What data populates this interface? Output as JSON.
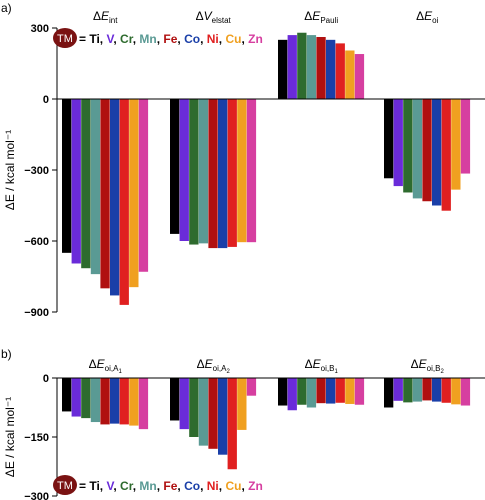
{
  "legend": {
    "badge": "TM",
    "badge_color": "#7a1212",
    "prefix": "= ",
    "separator": ", ",
    "metals": [
      {
        "name": "Ti",
        "color": "#000000"
      },
      {
        "name": "V",
        "color": "#6a2bd9"
      },
      {
        "name": "Cr",
        "color": "#2e6b2e"
      },
      {
        "name": "Mn",
        "color": "#5a9a94"
      },
      {
        "name": "Fe",
        "color": "#b01010"
      },
      {
        "name": "Co",
        "color": "#1a3fa8"
      },
      {
        "name": "Ni",
        "color": "#e02020"
      },
      {
        "name": "Cu",
        "color": "#f0a020"
      },
      {
        "name": "Zn",
        "color": "#d63fa0"
      }
    ]
  },
  "chart_data": [
    {
      "type": "bar",
      "panel_label": "a)",
      "ylabel": "ΔE / kcal mol⁻¹",
      "ylim": [
        -900,
        300
      ],
      "yticks": [
        300,
        0,
        -300,
        -600,
        -900
      ],
      "groups": [
        {
          "title": {
            "base": "ΔE",
            "sub": "int"
          },
          "values": [
            -650,
            -695,
            -715,
            -740,
            -800,
            -830,
            -870,
            -795,
            -730
          ]
        },
        {
          "title": {
            "base": "ΔV",
            "sub": "elstat"
          },
          "values": [
            -570,
            -600,
            -615,
            -610,
            -630,
            -630,
            -625,
            -605,
            -605
          ]
        },
        {
          "title": {
            "base": "ΔE",
            "sub": "Pauli"
          },
          "values": [
            250,
            270,
            280,
            270,
            262,
            250,
            235,
            205,
            190
          ]
        },
        {
          "title": {
            "base": "ΔE",
            "sub": "oi"
          },
          "values": [
            -335,
            -368,
            -395,
            -420,
            -432,
            -450,
            -472,
            -383,
            -315
          ]
        }
      ]
    },
    {
      "type": "bar",
      "panel_label": "b)",
      "ylabel": "ΔE / kcal mol⁻¹",
      "ylim": [
        -300,
        0
      ],
      "yticks": [
        0,
        -150,
        -300
      ],
      "groups": [
        {
          "title": {
            "base": "ΔE",
            "sub": "oi,A",
            "subsub": "1"
          },
          "values": [
            -85,
            -98,
            -102,
            -112,
            -118,
            -116,
            -118,
            -121,
            -130
          ]
        },
        {
          "title": {
            "base": "ΔE",
            "sub": "oi,A",
            "subsub": "2"
          },
          "values": [
            -108,
            -130,
            -150,
            -172,
            -180,
            -195,
            -232,
            -132,
            -45
          ]
        },
        {
          "title": {
            "base": "ΔE",
            "sub": "oi,B",
            "subsub": "1"
          },
          "values": [
            -70,
            -82,
            -68,
            -75,
            -64,
            -65,
            -63,
            -66,
            -68
          ]
        },
        {
          "title": {
            "base": "ΔE",
            "sub": "oi,B",
            "subsub": "2"
          },
          "values": [
            -75,
            -58,
            -62,
            -60,
            -57,
            -60,
            -63,
            -67,
            -70
          ]
        }
      ]
    }
  ]
}
